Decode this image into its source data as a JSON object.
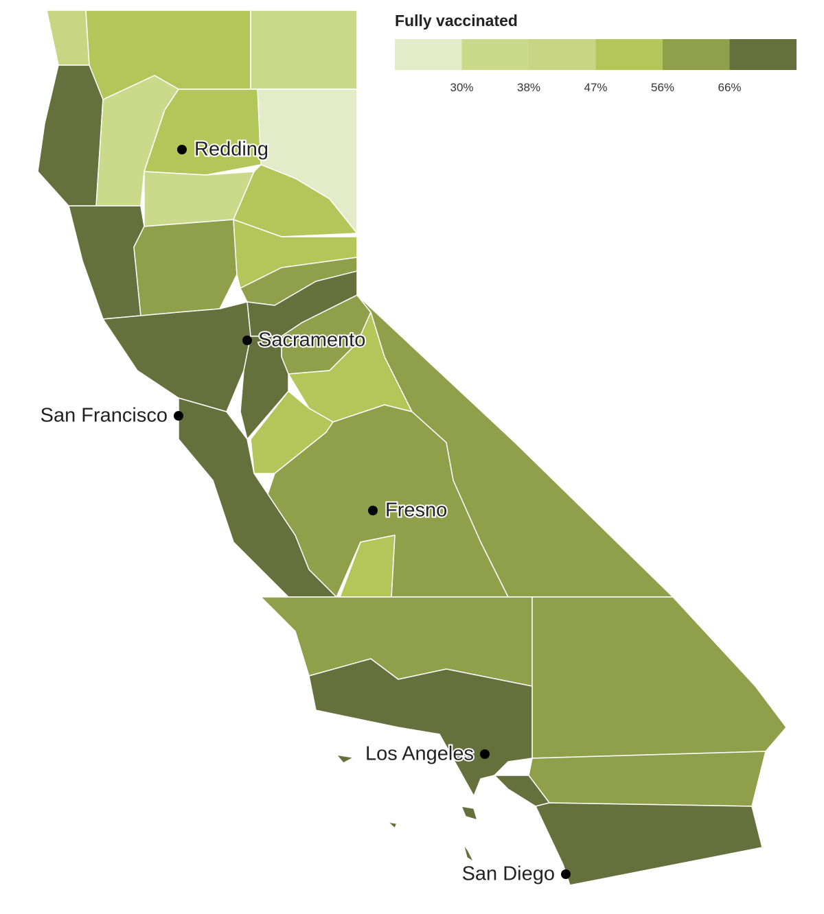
{
  "legend": {
    "title": "Fully vaccinated",
    "colors": [
      "#e3ecc8",
      "#cbd98b",
      "#c8d683",
      "#b4c55a",
      "#8f9f4a",
      "#65713d"
    ],
    "ticks": [
      {
        "value": 30,
        "label": "30%"
      },
      {
        "value": 38,
        "label": "38%"
      },
      {
        "value": 47,
        "label": "47%"
      },
      {
        "value": 56,
        "label": "56%"
      },
      {
        "value": 66,
        "label": "66%"
      }
    ]
  },
  "cities": [
    "Redding",
    "Sacramento",
    "San Francisco",
    "Fresno",
    "Los Angeles",
    "San Diego"
  ]
}
